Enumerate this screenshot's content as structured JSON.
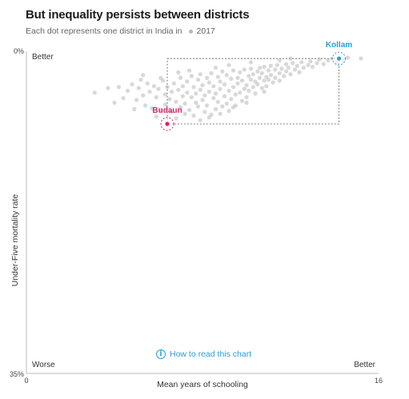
{
  "chart_data": {
    "type": "scatter",
    "title": "But inequality persists between districts",
    "subtitle": "Each dot represents one district in India in",
    "legend": [
      {
        "label": "2017",
        "color": "#b8b8b8"
      }
    ],
    "xlabel": "Mean years of schooling",
    "ylabel": "Under-Five mortality rate",
    "xlim": [
      0,
      16
    ],
    "ylim": [
      0,
      35
    ],
    "y_inverted": true,
    "x_ticks": [
      "0",
      "16"
    ],
    "y_ticks": [
      "0%",
      "35%"
    ],
    "corner_labels": {
      "better_top": "Better",
      "worse": "Worse",
      "better_right": "Better"
    },
    "highlights": [
      {
        "name": "Kollam",
        "x": 14.2,
        "y": 0.8,
        "color": "#2a9fd6"
      },
      {
        "name": "Budaun",
        "x": 6.4,
        "y": 7.9,
        "color": "#d6246e"
      }
    ],
    "series": [
      {
        "color": "#b8b8b8",
        "points": [
          [
            3.1,
            4.5
          ],
          [
            3.7,
            4.0
          ],
          [
            4.0,
            5.6
          ],
          [
            4.2,
            3.9
          ],
          [
            4.4,
            5.1
          ],
          [
            4.6,
            4.3
          ],
          [
            4.8,
            3.6
          ],
          [
            5.0,
            5.3
          ],
          [
            5.1,
            4.0
          ],
          [
            5.2,
            3.1
          ],
          [
            5.3,
            4.8
          ],
          [
            5.4,
            5.9
          ],
          [
            5.5,
            3.5
          ],
          [
            5.6,
            4.4
          ],
          [
            5.7,
            6.2
          ],
          [
            5.8,
            3.8
          ],
          [
            5.9,
            5.0
          ],
          [
            6.0,
            4.1
          ],
          [
            6.1,
            6.4
          ],
          [
            6.2,
            3.2
          ],
          [
            6.3,
            4.7
          ],
          [
            6.3,
            5.8
          ],
          [
            6.4,
            3.9
          ],
          [
            6.5,
            5.2
          ],
          [
            6.6,
            4.4
          ],
          [
            6.6,
            6.6
          ],
          [
            6.7,
            3.5
          ],
          [
            6.8,
            5.5
          ],
          [
            6.9,
            4.2
          ],
          [
            7.0,
            2.9
          ],
          [
            7.0,
            6.1
          ],
          [
            7.1,
            3.8
          ],
          [
            7.1,
            4.9
          ],
          [
            7.2,
            5.7
          ],
          [
            7.3,
            3.3
          ],
          [
            7.3,
            4.5
          ],
          [
            7.4,
            6.4
          ],
          [
            7.5,
            2.7
          ],
          [
            7.5,
            5.0
          ],
          [
            7.6,
            3.9
          ],
          [
            7.6,
            7.0
          ],
          [
            7.7,
            4.6
          ],
          [
            7.7,
            5.6
          ],
          [
            7.8,
            3.1
          ],
          [
            7.8,
            6.0
          ],
          [
            7.9,
            4.2
          ],
          [
            7.9,
            2.5
          ],
          [
            8.0,
            5.3
          ],
          [
            8.0,
            3.7
          ],
          [
            8.1,
            6.6
          ],
          [
            8.1,
            4.8
          ],
          [
            8.2,
            2.9
          ],
          [
            8.2,
            5.9
          ],
          [
            8.3,
            3.4
          ],
          [
            8.3,
            4.4
          ],
          [
            8.4,
            6.9
          ],
          [
            8.4,
            2.4
          ],
          [
            8.5,
            5.1
          ],
          [
            8.5,
            3.8
          ],
          [
            8.6,
            4.6
          ],
          [
            8.6,
            6.3
          ],
          [
            8.7,
            2.8
          ],
          [
            8.7,
            5.5
          ],
          [
            8.8,
            3.3
          ],
          [
            8.8,
            4.1
          ],
          [
            8.9,
            6.0
          ],
          [
            8.9,
            2.2
          ],
          [
            9.0,
            4.9
          ],
          [
            9.0,
            3.6
          ],
          [
            9.1,
            5.7
          ],
          [
            9.1,
            2.6
          ],
          [
            9.2,
            4.3
          ],
          [
            9.2,
            6.5
          ],
          [
            9.3,
            3.0
          ],
          [
            9.3,
            5.2
          ],
          [
            9.4,
            3.9
          ],
          [
            9.4,
            2.1
          ],
          [
            9.5,
            4.7
          ],
          [
            9.5,
            5.9
          ],
          [
            9.6,
            2.9
          ],
          [
            9.6,
            3.5
          ],
          [
            9.7,
            4.5
          ],
          [
            9.7,
            2.3
          ],
          [
            9.8,
            5.4
          ],
          [
            9.8,
            3.2
          ],
          [
            9.9,
            4.1
          ],
          [
            9.9,
            2.0
          ],
          [
            10.0,
            3.7
          ],
          [
            10.0,
            5.0
          ],
          [
            10.1,
            2.7
          ],
          [
            10.1,
            4.3
          ],
          [
            10.2,
            3.1
          ],
          [
            10.2,
            1.9
          ],
          [
            10.3,
            3.9
          ],
          [
            10.3,
            2.5
          ],
          [
            10.4,
            4.6
          ],
          [
            10.4,
            3.3
          ],
          [
            10.5,
            2.2
          ],
          [
            10.5,
            3.6
          ],
          [
            10.6,
            1.8
          ],
          [
            10.6,
            2.9
          ],
          [
            10.7,
            4.0
          ],
          [
            10.7,
            2.4
          ],
          [
            10.8,
            3.2
          ],
          [
            10.8,
            1.7
          ],
          [
            10.9,
            2.8
          ],
          [
            10.9,
            3.8
          ],
          [
            11.0,
            2.1
          ],
          [
            11.0,
            3.1
          ],
          [
            11.1,
            1.6
          ],
          [
            11.1,
            2.6
          ],
          [
            11.2,
            3.4
          ],
          [
            11.3,
            2.0
          ],
          [
            11.3,
            2.9
          ],
          [
            11.4,
            1.5
          ],
          [
            11.5,
            2.4
          ],
          [
            11.5,
            3.2
          ],
          [
            11.6,
            1.9
          ],
          [
            11.7,
            2.7
          ],
          [
            11.8,
            1.4
          ],
          [
            11.8,
            2.2
          ],
          [
            11.9,
            1.8
          ],
          [
            12.0,
            2.5
          ],
          [
            12.1,
            1.3
          ],
          [
            12.2,
            2.0
          ],
          [
            12.3,
            1.6
          ],
          [
            12.4,
            2.3
          ],
          [
            12.5,
            1.2
          ],
          [
            12.6,
            1.8
          ],
          [
            12.8,
            1.5
          ],
          [
            12.9,
            1.1
          ],
          [
            13.0,
            1.7
          ],
          [
            13.2,
            1.3
          ],
          [
            13.3,
            0.9
          ],
          [
            13.5,
            1.4
          ],
          [
            13.7,
            1.0
          ],
          [
            13.9,
            0.8
          ],
          [
            14.1,
            1.2
          ],
          [
            14.4,
            1.0
          ],
          [
            14.6,
            0.7
          ],
          [
            15.2,
            0.8
          ],
          [
            7.2,
            6.8
          ],
          [
            8.3,
            7.2
          ],
          [
            8.8,
            6.8
          ],
          [
            9.4,
            6.1
          ],
          [
            6.8,
            7.3
          ],
          [
            7.9,
            7.5
          ],
          [
            10.0,
            5.6
          ],
          [
            5.9,
            7.1
          ],
          [
            6.1,
            2.9
          ],
          [
            7.4,
            2.1
          ],
          [
            8.6,
            1.8
          ],
          [
            9.2,
            1.5
          ],
          [
            10.2,
            1.2
          ],
          [
            6.9,
            2.3
          ],
          [
            5.3,
            2.6
          ],
          [
            4.9,
            6.3
          ],
          [
            11.5,
            1.0
          ],
          [
            12.0,
            0.8
          ],
          [
            10.8,
            4.4
          ]
        ]
      }
    ]
  },
  "help_link": {
    "label": "How to read this chart",
    "icon": "info-icon"
  }
}
